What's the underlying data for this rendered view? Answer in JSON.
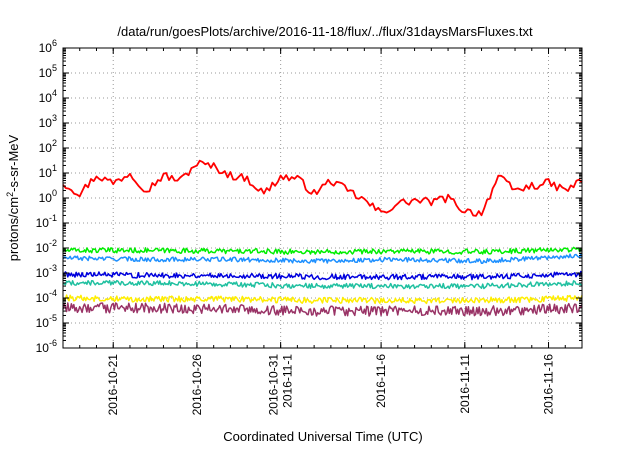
{
  "chart_data": {
    "type": "line",
    "title": "/data/run/goesPlots/archive/2016-11-18/flux/../flux/31daysMarsFluxes.txt",
    "xlabel": "Coordinated Universal Time (UTC)",
    "ylabel": "protons/cm2-s-sr-MeV",
    "yscale": "log",
    "ylim": [
      1e-06,
      1000000.0
    ],
    "y_ticks": [
      {
        "value": 1e-06,
        "base": "10",
        "exp": "-6"
      },
      {
        "value": 1e-05,
        "base": "10",
        "exp": "-5"
      },
      {
        "value": 0.0001,
        "base": "10",
        "exp": "-4"
      },
      {
        "value": 0.001,
        "base": "10",
        "exp": "-3"
      },
      {
        "value": 0.01,
        "base": "10",
        "exp": "-2"
      },
      {
        "value": 0.1,
        "base": "10",
        "exp": "-1"
      },
      {
        "value": 1,
        "base": "10",
        "exp": "0"
      },
      {
        "value": 10,
        "base": "10",
        "exp": "1"
      },
      {
        "value": 100,
        "base": "10",
        "exp": "2"
      },
      {
        "value": 1000,
        "base": "10",
        "exp": "3"
      },
      {
        "value": 10000,
        "base": "10",
        "exp": "4"
      },
      {
        "value": 100000,
        "base": "10",
        "exp": "5"
      },
      {
        "value": 1000000,
        "base": "10",
        "exp": "6"
      }
    ],
    "xlim": [
      "2016-10-18",
      "2016-11-18"
    ],
    "x_ticks": [
      {
        "date": "2016-10-21",
        "labels": [
          "2016-10-21"
        ]
      },
      {
        "date": "2016-10-26",
        "labels": [
          "2016-10-26"
        ]
      },
      {
        "date": "2016-10-31",
        "labels": [
          "2016-10-31",
          "2016-11-1"
        ]
      },
      {
        "date": "2016-11-06",
        "labels": [
          "2016-11-6"
        ]
      },
      {
        "date": "2016-11-11",
        "labels": [
          "2016-11-11"
        ]
      },
      {
        "date": "2016-11-16",
        "labels": [
          "2016-11-16"
        ]
      }
    ],
    "grid": true,
    "legend": "none",
    "series": [
      {
        "color": "#ff0000",
        "x": [
          "2016-10-18",
          "2016-10-19",
          "2016-10-20",
          "2016-10-21",
          "2016-10-22",
          "2016-10-23",
          "2016-10-24",
          "2016-10-25",
          "2016-10-26",
          "2016-10-27",
          "2016-10-28",
          "2016-10-29",
          "2016-10-30",
          "2016-10-31",
          "2016-11-01",
          "2016-11-02",
          "2016-11-03",
          "2016-11-04",
          "2016-11-05",
          "2016-11-06",
          "2016-11-07",
          "2016-11-08",
          "2016-11-09",
          "2016-11-10",
          "2016-11-11",
          "2016-11-12",
          "2016-11-13",
          "2016-11-14",
          "2016-11-15",
          "2016-11-16",
          "2016-11-17",
          "2016-11-18"
        ],
        "y": [
          4,
          1.5,
          8,
          4,
          10,
          2,
          8,
          5,
          25,
          18,
          8,
          6,
          1.5,
          7,
          6,
          1.5,
          5,
          2,
          0.8,
          0.25,
          0.6,
          0.8,
          0.7,
          1,
          0.3,
          0.25,
          7,
          2,
          3,
          4,
          2,
          5
        ]
      },
      {
        "color": "#00ee00",
        "x": [
          "2016-10-18",
          "2016-10-23",
          "2016-10-28",
          "2016-11-02",
          "2016-11-07",
          "2016-11-12",
          "2016-11-18"
        ],
        "y": [
          0.008,
          0.008,
          0.0075,
          0.007,
          0.0075,
          0.007,
          0.009
        ]
      },
      {
        "color": "#1e90ff",
        "x": [
          "2016-10-18",
          "2016-10-23",
          "2016-10-28",
          "2016-11-02",
          "2016-11-07",
          "2016-11-12",
          "2016-11-18"
        ],
        "y": [
          0.004,
          0.0035,
          0.0035,
          0.003,
          0.0035,
          0.003,
          0.005
        ]
      },
      {
        "color": "#0000dd",
        "x": [
          "2016-10-18",
          "2016-10-23",
          "2016-10-28",
          "2016-11-02",
          "2016-11-07",
          "2016-11-12",
          "2016-11-18"
        ],
        "y": [
          0.0009,
          0.0008,
          0.0008,
          0.0007,
          0.0007,
          0.0007,
          0.0009
        ]
      },
      {
        "color": "#20c0a0",
        "x": [
          "2016-10-18",
          "2016-10-23",
          "2016-10-28",
          "2016-11-02",
          "2016-11-07",
          "2016-11-12",
          "2016-11-18"
        ],
        "y": [
          0.0004,
          0.0004,
          0.00035,
          0.0003,
          0.0003,
          0.0003,
          0.0004
        ]
      },
      {
        "color": "#ffee00",
        "x": [
          "2016-10-18",
          "2016-10-23",
          "2016-10-28",
          "2016-11-02",
          "2016-11-07",
          "2016-11-12",
          "2016-11-18"
        ],
        "y": [
          0.0001,
          9e-05,
          9e-05,
          8e-05,
          8e-05,
          8e-05,
          0.0001
        ]
      },
      {
        "color": "#993366",
        "x": [
          "2016-10-18",
          "2016-10-23",
          "2016-10-28",
          "2016-11-02",
          "2016-11-07",
          "2016-11-12",
          "2016-11-18"
        ],
        "y": [
          4e-05,
          4e-05,
          3.5e-05,
          3e-05,
          3e-05,
          3e-05,
          4e-05
        ]
      }
    ]
  }
}
